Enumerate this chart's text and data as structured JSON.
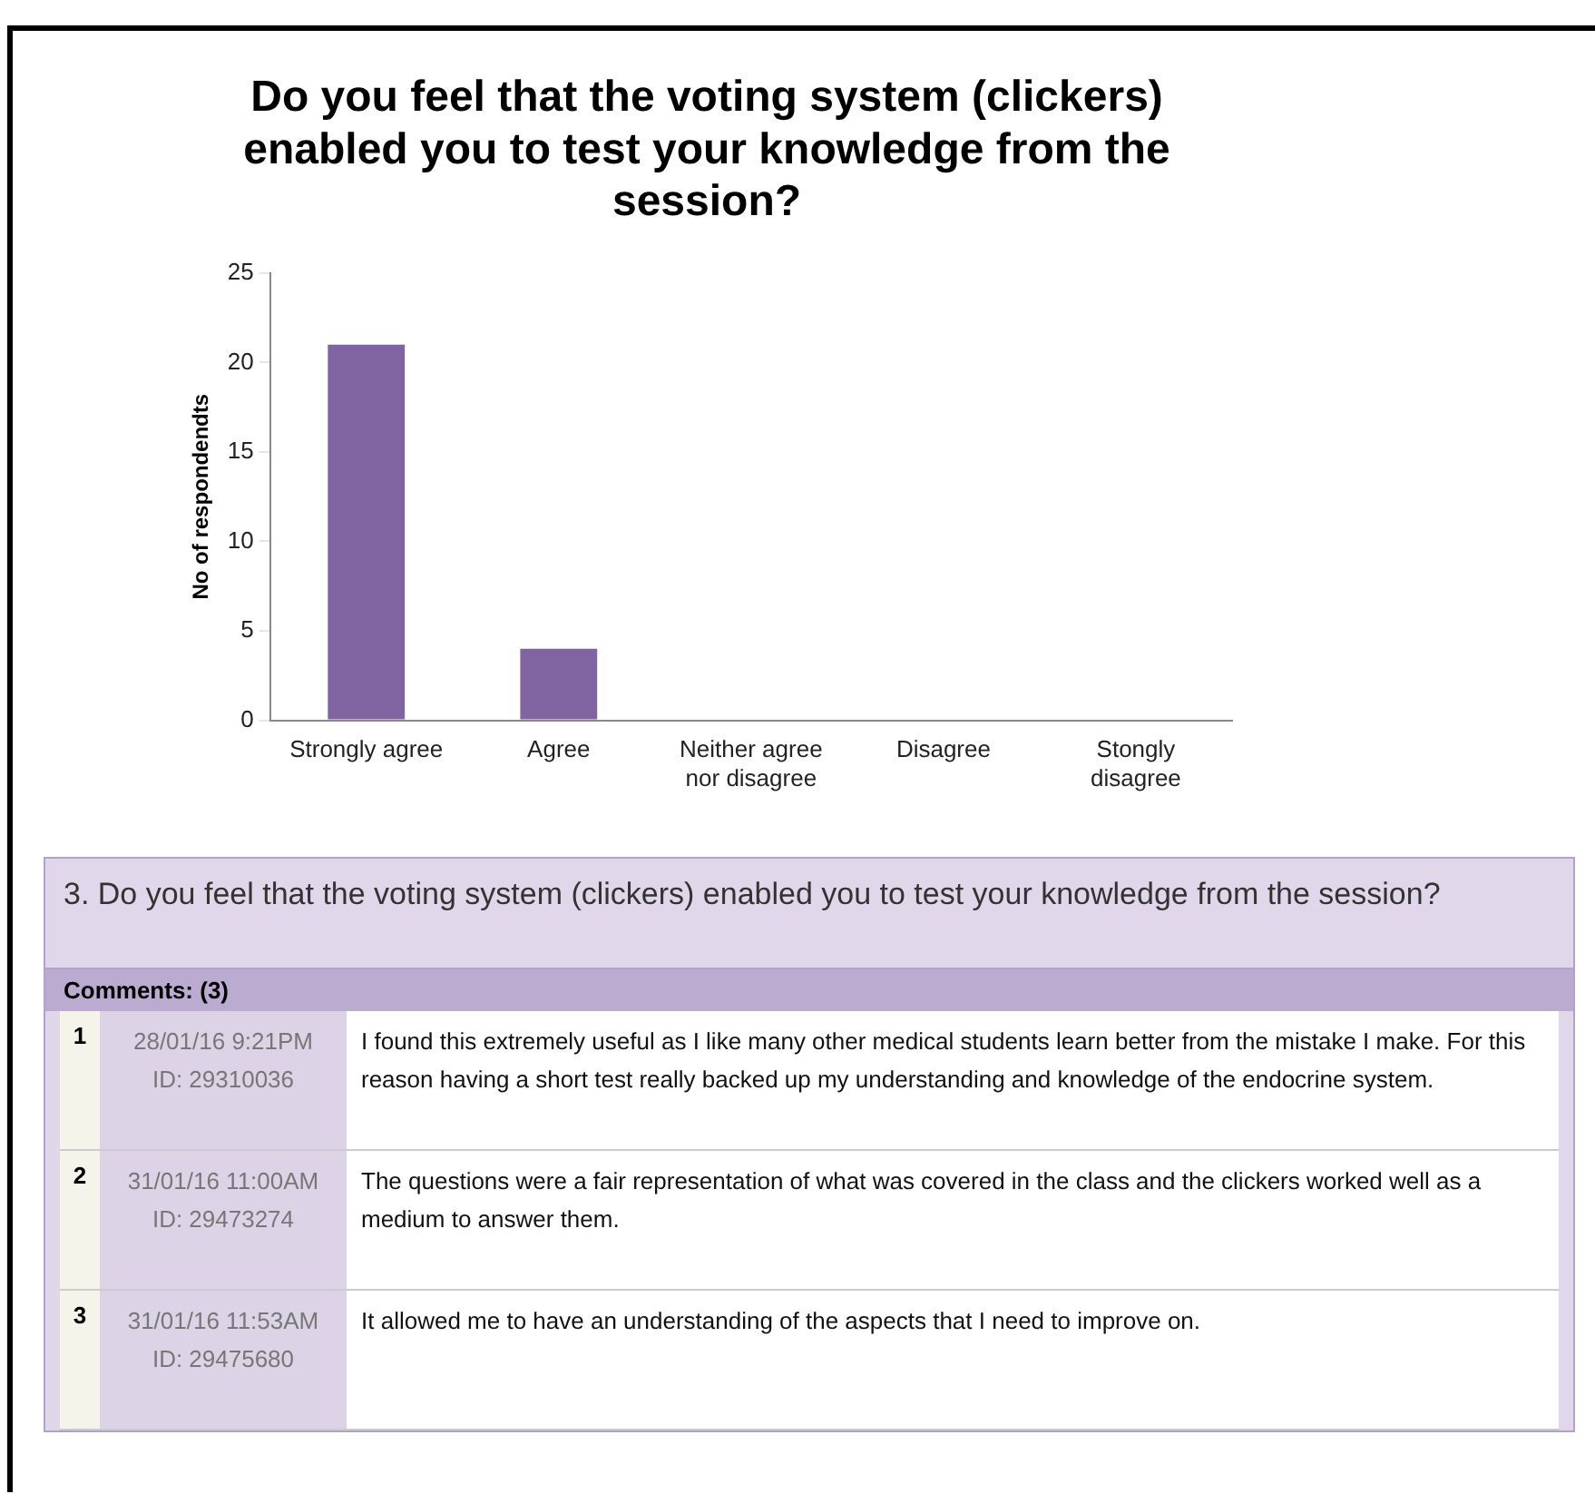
{
  "chart_data": {
    "type": "bar",
    "title": "Do you feel that the voting system (clickers) enabled you to test your knowledge from the session?",
    "ylabel": "No of respondendts",
    "categories": [
      "Strongly agree",
      "Agree",
      "Neither agree nor disagree",
      "Disagree",
      "Stongly disagree"
    ],
    "values": [
      21,
      4,
      0,
      0,
      0
    ],
    "color": "#8064a2",
    "ylim": [
      0,
      25
    ],
    "yticks": [
      0,
      5,
      10,
      15,
      20,
      25
    ],
    "grid": false,
    "legend": false,
    "annotations": [
      "3. Do you feel that the voting system (clickers) enabled you to test your knowledge from the session?",
      "Comments: (3)",
      "1",
      "28/01/16 9:21PM",
      "ID: 29310036",
      "I found this extremely useful as I like many other medical students learn better from the mistake I make. For this reason having a short test really backed up my understanding and knowledge of the endocrine system.",
      "2",
      "31/01/16 11:00AM",
      "ID: 29473274",
      "The questions were a fair representation of what was covered in the class and the clickers worked well as a medium to answer them.",
      "3",
      "31/01/16 11:53AM",
      "ID: 29475680",
      "It allowed me to have an understanding of the aspects that I need to improve on."
    ]
  }
}
